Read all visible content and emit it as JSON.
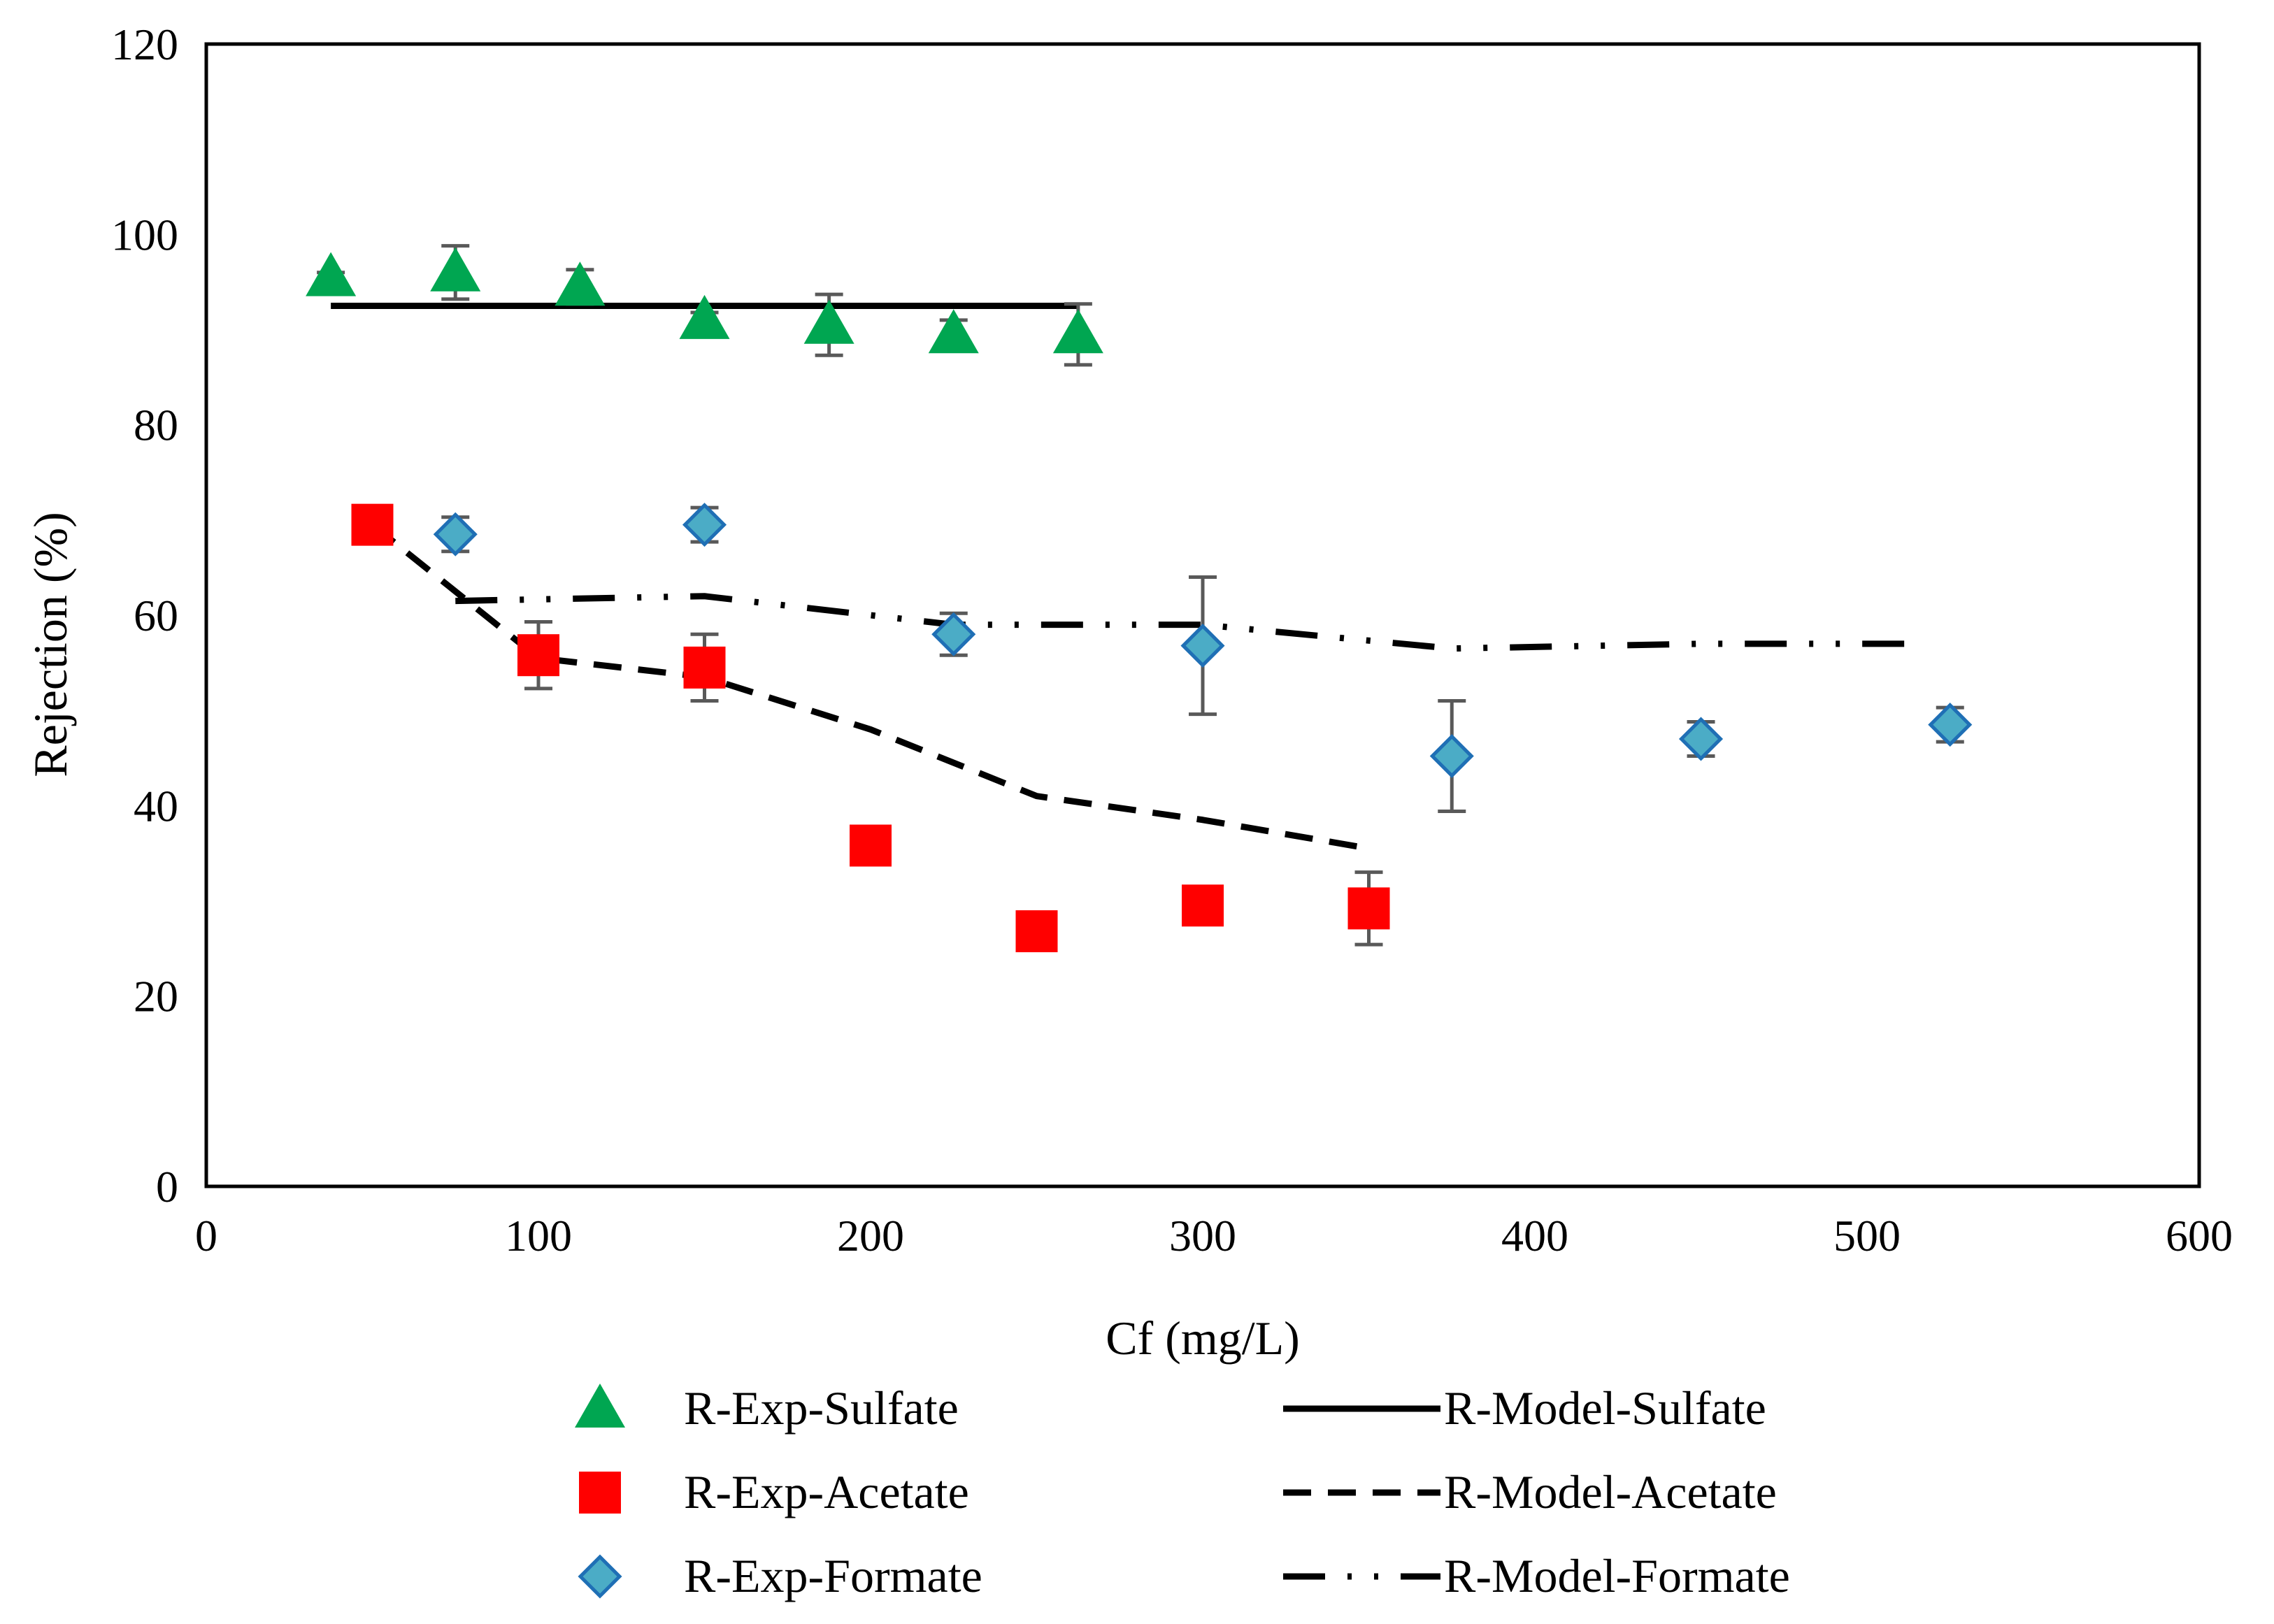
{
  "chart_data": {
    "type": "scatter",
    "title": "",
    "xlabel": "Cf (mg/L)",
    "ylabel": "Rejection (%)",
    "xlim": [
      0,
      600
    ],
    "ylim": [
      0,
      120
    ],
    "x_ticks": [
      0,
      100,
      200,
      300,
      400,
      500,
      600
    ],
    "y_ticks": [
      0,
      20,
      40,
      60,
      80,
      100,
      120
    ],
    "grid": false,
    "legend_position": "bottom",
    "series": [
      {
        "name": "R-Exp-Sulfate",
        "kind": "markers",
        "marker": "triangle",
        "color": "#00a651",
        "x": [
          37.5,
          75,
          112.5,
          150,
          187.5,
          225,
          262.5
        ],
        "y": [
          95.5,
          96,
          94.5,
          91,
          90.5,
          89.5,
          89.5
        ],
        "err": [
          0.5,
          2.8,
          1.8,
          0.8,
          3.2,
          1.5,
          3.2
        ]
      },
      {
        "name": "R-Model-Sulfate",
        "kind": "line",
        "dash": "solid",
        "color": "#000000",
        "x": [
          37.5,
          75,
          112.5,
          150,
          187.5,
          225,
          262.5
        ],
        "y": [
          92.5,
          92.5,
          92.5,
          92.5,
          92.5,
          92.5,
          92.5
        ]
      },
      {
        "name": "R-Exp-Acetate",
        "kind": "markers",
        "marker": "square",
        "color": "#ff0000",
        "x": [
          50,
          100,
          150,
          200,
          250,
          300,
          350
        ],
        "y": [
          69.5,
          55.8,
          54.5,
          35.8,
          26.8,
          29.5,
          29.2
        ],
        "err": [
          0.5,
          3.5,
          3.5,
          1.0,
          0.5,
          1.8,
          3.8
        ]
      },
      {
        "name": "R-Model-Acetate",
        "kind": "line",
        "dash": "dashed",
        "color": "#000000",
        "x": [
          50,
          100,
          150,
          200,
          250,
          300,
          350
        ],
        "y": [
          69.5,
          55.5,
          53.5,
          48.0,
          41.0,
          38.5,
          35.5
        ]
      },
      {
        "name": "R-Exp-Formate",
        "kind": "markers",
        "marker": "diamond",
        "color": "#4bacc6",
        "x": [
          75,
          150,
          225,
          300,
          375,
          450,
          525
        ],
        "y": [
          68.5,
          69.5,
          58,
          56.8,
          45.2,
          47,
          48.5
        ],
        "err": [
          1.8,
          1.8,
          2.2,
          7.2,
          5.8,
          1.8,
          1.8
        ]
      },
      {
        "name": "R-Model-Formate",
        "kind": "line",
        "dash": "dash-dot-dot",
        "color": "#000000",
        "x": [
          75,
          150,
          225,
          300,
          375,
          450,
          517
        ],
        "y": [
          61.5,
          62.0,
          59.0,
          59.0,
          56.5,
          57.0,
          57.0
        ]
      }
    ]
  }
}
